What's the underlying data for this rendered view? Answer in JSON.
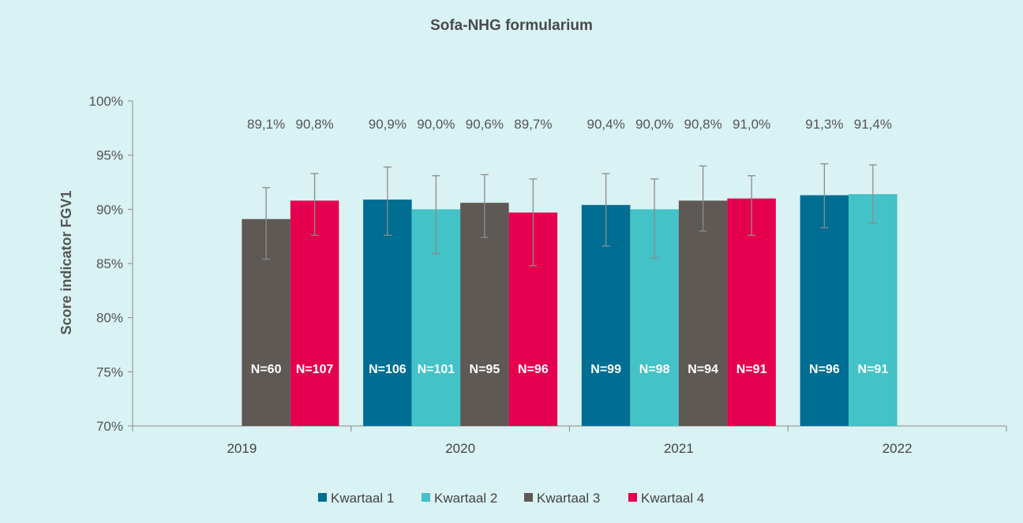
{
  "chart_data": {
    "type": "bar",
    "title": "Sofa-NHG formularium",
    "ylabel": "Score indicator FGV1",
    "xlabel": "",
    "ylim": [
      70,
      100
    ],
    "yticks": [
      "70%",
      "75%",
      "80%",
      "85%",
      "90%",
      "95%",
      "100%"
    ],
    "categories": [
      "2019",
      "2020",
      "2021",
      "2022"
    ],
    "grid": false,
    "legend_position": "bottom",
    "series": [
      {
        "name": "Kwartaal 1",
        "color": "#006d93",
        "values": [
          null,
          90.9,
          90.4,
          91.3
        ],
        "labels": [
          "",
          "90,9%",
          "90,4%",
          "91,3%"
        ],
        "n": [
          "",
          "N=106",
          "N=99",
          "N=96"
        ],
        "err_low": [
          null,
          87.6,
          86.6,
          88.3
        ],
        "err_high": [
          null,
          93.9,
          93.3,
          94.2
        ]
      },
      {
        "name": "Kwartaal 2",
        "color": "#43c2c7",
        "values": [
          null,
          90.0,
          90.0,
          91.4
        ],
        "labels": [
          "",
          "90,0%",
          "90,0%",
          "91,4%"
        ],
        "n": [
          "",
          "N=101",
          "N=98",
          "N=91"
        ],
        "err_low": [
          null,
          85.9,
          85.5,
          88.7
        ],
        "err_high": [
          null,
          93.1,
          92.8,
          94.1
        ]
      },
      {
        "name": "Kwartaal 3",
        "color": "#5e5955",
        "values": [
          89.1,
          90.6,
          90.8,
          null
        ],
        "labels": [
          "89,1%",
          "90,6%",
          "90,8%",
          ""
        ],
        "n": [
          "N=60",
          "N=95",
          "N=94",
          ""
        ],
        "err_low": [
          85.4,
          87.4,
          88.0,
          null
        ],
        "err_high": [
          92.0,
          93.2,
          94.0,
          null
        ]
      },
      {
        "name": "Kwartaal 4",
        "color": "#e4004f",
        "values": [
          90.8,
          89.7,
          91.0,
          null
        ],
        "labels": [
          "90,8%",
          "89,7%",
          "91,0%",
          ""
        ],
        "n": [
          "N=107",
          "N=96",
          "N=91",
          ""
        ],
        "err_low": [
          87.6,
          84.8,
          87.6,
          null
        ],
        "err_high": [
          93.3,
          92.8,
          93.1,
          null
        ]
      }
    ]
  }
}
